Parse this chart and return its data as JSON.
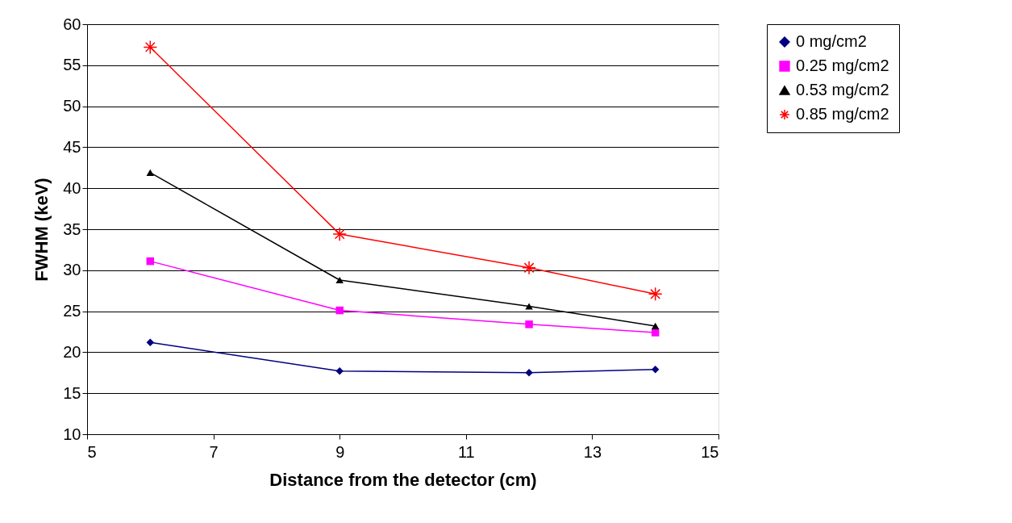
{
  "chart_data": {
    "type": "line",
    "xlabel": "Distance from the detector (cm)",
    "ylabel": "FWHM (keV)",
    "x": [
      6,
      9,
      12,
      14
    ],
    "series": [
      {
        "name": "0 mg/cm2",
        "color": "#000080",
        "marker": "diamond",
        "values": [
          21.2,
          17.7,
          17.5,
          17.9
        ]
      },
      {
        "name": "0.25 mg/cm2",
        "color": "#ff00ff",
        "marker": "square",
        "values": [
          31.1,
          25.1,
          23.4,
          22.4
        ]
      },
      {
        "name": "0.53 mg/cm2",
        "color": "#000000",
        "marker": "triangle",
        "values": [
          41.9,
          28.8,
          25.6,
          23.2
        ]
      },
      {
        "name": "0.85 mg/cm2",
        "color": "#ff0000",
        "marker": "cross",
        "values": [
          57.2,
          34.4,
          30.3,
          27.1
        ]
      }
    ],
    "xlim": [
      5,
      15
    ],
    "xticks": [
      5,
      7,
      9,
      11,
      13,
      15
    ],
    "ylim": [
      10,
      60
    ],
    "yticks": [
      10,
      15,
      20,
      25,
      30,
      35,
      40,
      45,
      50,
      55,
      60
    ],
    "grid": "y",
    "legend": "top right",
    "line_style": "solid"
  }
}
